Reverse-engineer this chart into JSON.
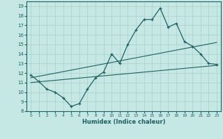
{
  "xlabel": "Humidex (Indice chaleur)",
  "bg_color": "#c5e8e5",
  "grid_color": "#afd4d0",
  "line_color": "#1e5f5f",
  "xlim": [
    -0.5,
    23.5
  ],
  "ylim": [
    8,
    19.5
  ],
  "xticks": [
    0,
    1,
    2,
    3,
    4,
    5,
    6,
    7,
    8,
    9,
    10,
    11,
    12,
    13,
    14,
    15,
    16,
    17,
    18,
    19,
    20,
    21,
    22,
    23
  ],
  "yticks": [
    8,
    9,
    10,
    11,
    12,
    13,
    14,
    15,
    16,
    17,
    18,
    19
  ],
  "main_x": [
    0,
    1,
    2,
    3,
    4,
    5,
    6,
    7,
    8,
    9,
    10,
    11,
    12,
    13,
    14,
    15,
    16,
    17,
    18,
    19,
    20,
    21,
    22,
    23
  ],
  "main_y": [
    11.8,
    11.1,
    10.3,
    10.0,
    9.4,
    8.5,
    8.8,
    10.3,
    11.5,
    12.1,
    14.0,
    13.0,
    15.0,
    16.5,
    17.6,
    17.6,
    18.8,
    16.8,
    17.2,
    15.3,
    14.8,
    14.0,
    13.0,
    12.9
  ],
  "line2_x": [
    0,
    23
  ],
  "line2_y": [
    11.0,
    12.8
  ],
  "line3_x": [
    0,
    23
  ],
  "line3_y": [
    11.5,
    15.2
  ]
}
